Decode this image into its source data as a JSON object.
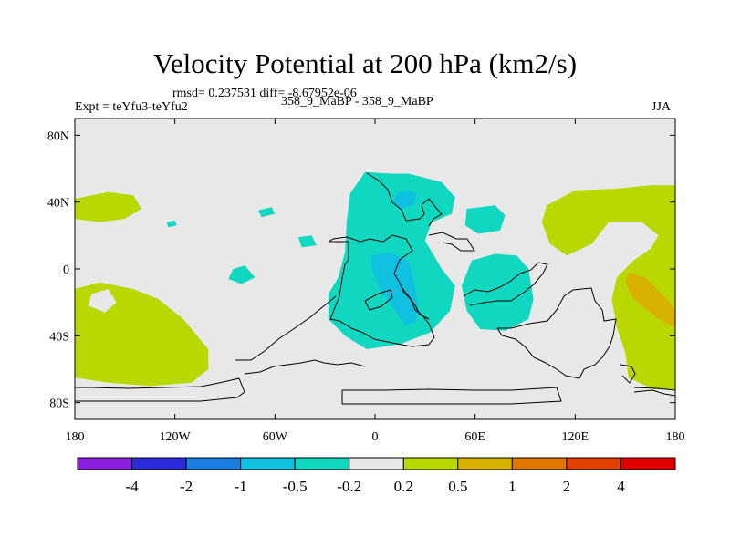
{
  "header": {
    "title": "Velocity Potential at 200 hPa (km2/s)",
    "stats": "rmsd= 0.237531 diff= -8.67952e-06",
    "expt": "Expt = teYfu3-teYfu2",
    "runs": "358_9_MaBP - 358_9_MaBP",
    "season": "JJA"
  },
  "chart_data": {
    "type": "contour-map",
    "title": "Velocity Potential at 200 hPa (km2/s)",
    "x_range": [
      -180,
      180
    ],
    "y_range": [
      -90,
      90
    ],
    "x_ticks": [
      {
        "value": -180,
        "label": "180"
      },
      {
        "value": -120,
        "label": "120W"
      },
      {
        "value": -60,
        "label": "60W"
      },
      {
        "value": 0,
        "label": "0"
      },
      {
        "value": 60,
        "label": "60E"
      },
      {
        "value": 120,
        "label": "120E"
      },
      {
        "value": 180,
        "label": "180"
      }
    ],
    "y_ticks": [
      {
        "value": 80,
        "label": "80N"
      },
      {
        "value": 40,
        "label": "40N"
      },
      {
        "value": 0,
        "label": "0"
      },
      {
        "value": -40,
        "label": "40S"
      },
      {
        "value": -80,
        "label": "80S"
      }
    ],
    "colorbar": {
      "colors": [
        "#8a1fe0",
        "#2a2ad8",
        "#1a7de0",
        "#10c0e0",
        "#10d8c0",
        "#e8e8e8",
        "#b8d800",
        "#d8b000",
        "#e07800",
        "#e04000",
        "#e00000"
      ],
      "labels": [
        "-4",
        "-2",
        "-1",
        "-0.5",
        "-0.2",
        "0.2",
        "0.5",
        "1",
        "2",
        "4"
      ]
    },
    "background_color": "#e8e8e8",
    "regions": [
      {
        "level": "0.2 to 0.5",
        "color": "#b8d800",
        "points": [
          [
            -180,
            -12
          ],
          [
            -165,
            -8
          ],
          [
            -145,
            -12
          ],
          [
            -130,
            -18
          ],
          [
            -115,
            -30
          ],
          [
            -100,
            -48
          ],
          [
            -100,
            -60
          ],
          [
            -110,
            -68
          ],
          [
            -135,
            -70
          ],
          [
            -160,
            -68
          ],
          [
            -180,
            -65
          ]
        ]
      },
      {
        "level": "0.2 to 0.5",
        "color": "#b8d800",
        "points": [
          [
            -180,
            42
          ],
          [
            -160,
            46
          ],
          [
            -145,
            44
          ],
          [
            -140,
            36
          ],
          [
            -150,
            30
          ],
          [
            -165,
            28
          ],
          [
            -180,
            30
          ]
        ]
      },
      {
        "level": "0.2 to 0.5",
        "color": "#b8d800",
        "points": [
          [
            103,
            38
          ],
          [
            120,
            47
          ],
          [
            145,
            48
          ],
          [
            165,
            50
          ],
          [
            180,
            50
          ],
          [
            180,
            -72
          ],
          [
            167,
            -72
          ],
          [
            152,
            -65
          ],
          [
            150,
            -50
          ],
          [
            145,
            -35
          ],
          [
            142,
            -18
          ],
          [
            145,
            -5
          ],
          [
            155,
            5
          ],
          [
            165,
            12
          ],
          [
            170,
            20
          ],
          [
            160,
            28
          ],
          [
            140,
            28
          ],
          [
            130,
            15
          ],
          [
            115,
            8
          ],
          [
            105,
            15
          ],
          [
            100,
            28
          ]
        ]
      },
      {
        "level": "-0.5 to -0.2",
        "color": "#10d8c0",
        "points": [
          [
            -6,
            58
          ],
          [
            10,
            57
          ],
          [
            20,
            57
          ],
          [
            40,
            52
          ],
          [
            48,
            43
          ],
          [
            46,
            33
          ],
          [
            34,
            28
          ],
          [
            30,
            17
          ],
          [
            40,
            0
          ],
          [
            48,
            -10
          ],
          [
            45,
            -25
          ],
          [
            33,
            -38
          ],
          [
            15,
            -45
          ],
          [
            -5,
            -48
          ],
          [
            -18,
            -40
          ],
          [
            -28,
            -30
          ],
          [
            -28,
            -15
          ],
          [
            -22,
            -5
          ],
          [
            -18,
            10
          ],
          [
            -17,
            28
          ],
          [
            -15,
            45
          ]
        ]
      },
      {
        "level": "-0.5 to -0.2",
        "color": "#10d8c0",
        "points": [
          [
            55,
            36
          ],
          [
            72,
            38
          ],
          [
            78,
            32
          ],
          [
            75,
            23
          ],
          [
            62,
            21
          ],
          [
            54,
            26
          ]
        ]
      },
      {
        "level": "-0.5 to -0.2",
        "color": "#10d8c0",
        "points": [
          [
            58,
            5
          ],
          [
            72,
            9
          ],
          [
            85,
            8
          ],
          [
            92,
            0
          ],
          [
            95,
            -18
          ],
          [
            92,
            -30
          ],
          [
            78,
            -37
          ],
          [
            63,
            -36
          ],
          [
            55,
            -25
          ],
          [
            52,
            -10
          ]
        ]
      },
      {
        "level": "-0.5 to -0.2",
        "color": "#10d8c0",
        "points": [
          [
            -85,
            0
          ],
          [
            -78,
            2
          ],
          [
            -72,
            -5
          ],
          [
            -80,
            -9
          ],
          [
            -88,
            -6
          ]
        ]
      },
      {
        "level": "-0.5 to -0.2",
        "color": "#10d8c0",
        "points": [
          [
            -46,
            19
          ],
          [
            -38,
            20
          ],
          [
            -35,
            14
          ],
          [
            -44,
            13
          ]
        ]
      },
      {
        "level": "-0.5 to -0.2",
        "color": "#10d8c0",
        "points": [
          [
            -125,
            28
          ],
          [
            -120,
            29
          ],
          [
            -119,
            26
          ],
          [
            -124,
            25
          ]
        ]
      },
      {
        "level": "-0.5 to -0.2",
        "color": "#10d8c0",
        "points": [
          [
            -70,
            35
          ],
          [
            -62,
            37
          ],
          [
            -60,
            33
          ],
          [
            -68,
            31
          ]
        ]
      },
      {
        "level": "-1 to -0.5",
        "color": "#10c0e0",
        "points": [
          [
            13,
            45
          ],
          [
            20,
            47
          ],
          [
            25,
            45
          ],
          [
            23,
            38
          ],
          [
            15,
            36
          ],
          [
            11,
            40
          ]
        ]
      },
      {
        "level": "-1 to -0.5",
        "color": "#10c0e0",
        "points": [
          [
            -2,
            8
          ],
          [
            8,
            10
          ],
          [
            20,
            5
          ],
          [
            24,
            -10
          ],
          [
            26,
            -25
          ],
          [
            24,
            -32
          ],
          [
            18,
            -34
          ],
          [
            10,
            -22
          ],
          [
            3,
            -12
          ],
          [
            -2,
            0
          ]
        ]
      },
      {
        "level": "0.5 to 1",
        "color": "#d8b000",
        "points": [
          [
            152,
            -2
          ],
          [
            162,
            -5
          ],
          [
            175,
            -18
          ],
          [
            180,
            -25
          ],
          [
            180,
            -35
          ],
          [
            170,
            -30
          ],
          [
            155,
            -18
          ],
          [
            150,
            -8
          ]
        ]
      },
      {
        "level": "0.2 to 0.5",
        "color": "#e8e8e8",
        "points": [
          [
            -170,
            -15
          ],
          [
            -160,
            -12
          ],
          [
            -155,
            -20
          ],
          [
            -162,
            -26
          ],
          [
            -172,
            -22
          ]
        ]
      }
    ]
  }
}
